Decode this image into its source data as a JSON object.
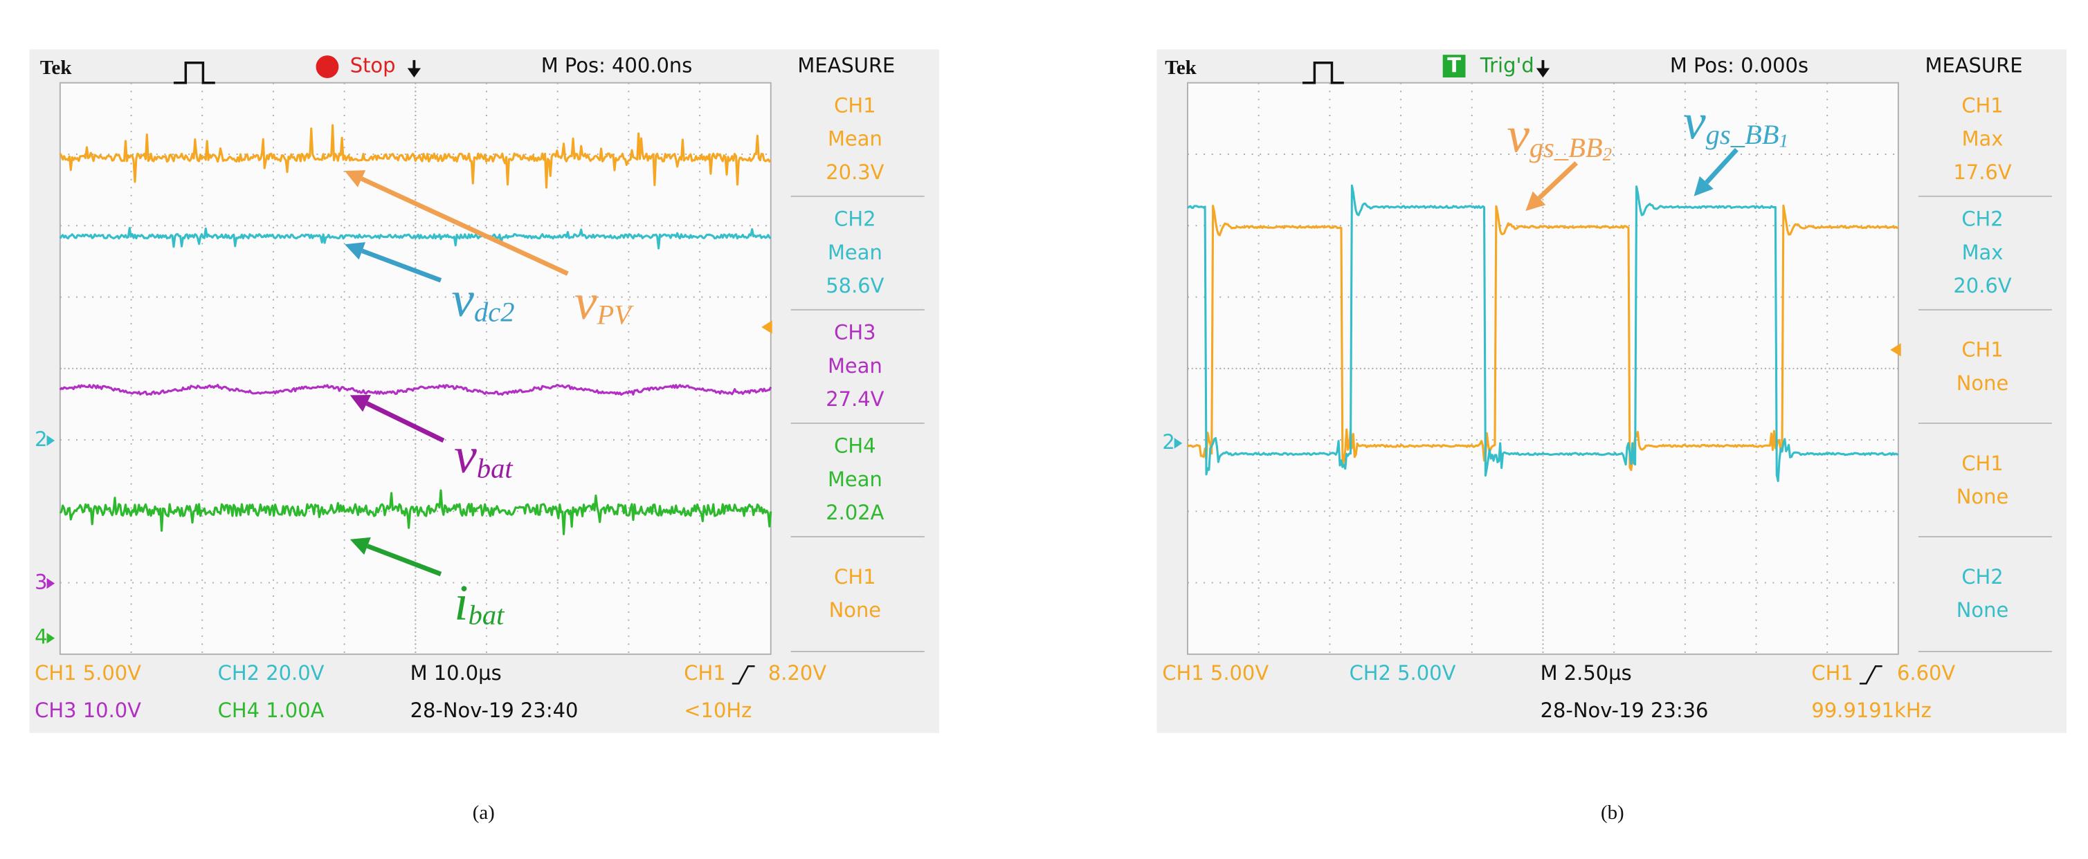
{
  "panels": [
    {
      "header": {
        "brand": "Tek",
        "status": "Stop",
        "position": "M Pos: 400.0ns",
        "measure_title": "MEASURE"
      },
      "measurements": [
        {
          "channel": "CH1",
          "kind": "Mean",
          "value": "20.3V"
        },
        {
          "channel": "CH2",
          "kind": "Mean",
          "value": "58.6V"
        },
        {
          "channel": "CH3",
          "kind": "Mean",
          "value": "27.4V"
        },
        {
          "channel": "CH4",
          "kind": "Mean",
          "value": "2.02A"
        },
        {
          "channel": "CH1",
          "kind": "None"
        }
      ],
      "footer": {
        "row1": [
          "CH1 5.00V",
          "CH2 20.0V",
          "M 10.0µs",
          "CH1",
          "8.20V"
        ],
        "row2": [
          "CH3 10.0V",
          "CH4 1.00A",
          "28-Nov-19 23:40",
          "<10Hz"
        ]
      },
      "ground_markers": [
        "2",
        "3",
        "4"
      ],
      "trace_labels": [
        {
          "symbol": "v",
          "subscript": "PV"
        },
        {
          "symbol": "v",
          "subscript": "dc2"
        },
        {
          "symbol": "v",
          "subscript": "bat"
        },
        {
          "symbol": "i",
          "subscript": "bat"
        }
      ],
      "caption": "(a)"
    },
    {
      "header": {
        "brand": "Tek",
        "trigger_icon": "T",
        "status": "Trig'd",
        "position": "M Pos: 0.000s",
        "measure_title": "MEASURE"
      },
      "measurements": [
        {
          "channel": "CH1",
          "kind": "Max",
          "value": "17.6V"
        },
        {
          "channel": "CH2",
          "kind": "Max",
          "value": "20.6V"
        },
        {
          "channel": "CH1",
          "kind": "None"
        },
        {
          "channel": "CH1",
          "kind": "None"
        },
        {
          "channel": "CH2",
          "kind": "None"
        }
      ],
      "footer": {
        "row1": [
          "CH1 5.00V",
          "CH2 5.00V",
          "M 2.50µs",
          "CH1",
          "6.60V"
        ],
        "row2": [
          "28-Nov-19 23:36",
          "99.9191kHz"
        ]
      },
      "ground_markers": [
        "2"
      ],
      "trace_labels": [
        {
          "symbol": "v",
          "subscript": "gs_BB",
          "index": "2"
        },
        {
          "symbol": "v",
          "subscript": "gs_BB",
          "index": "1"
        }
      ],
      "caption": "(b)"
    }
  ]
}
